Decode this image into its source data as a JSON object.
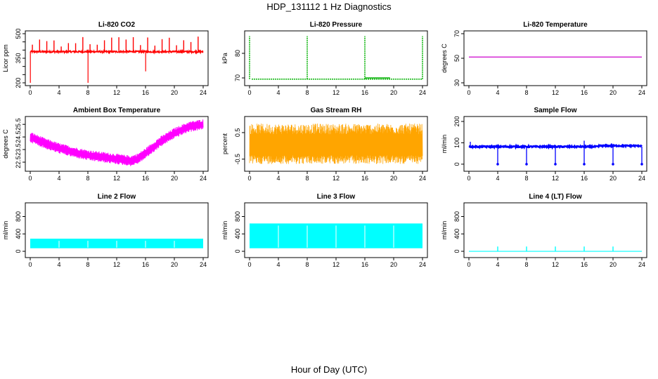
{
  "page": {
    "title": "HDP_131112  1 Hz Diagnostics",
    "xlabel": "Hour of Day (UTC)"
  },
  "chart_data": [
    {
      "type": "line",
      "title": "Li-820 CO2",
      "ylabel": "Licor ppm",
      "color": "#ff0000",
      "xlim": [
        0,
        24
      ],
      "ylim": [
        200,
        500
      ],
      "xticks": [
        "0",
        "4",
        "8",
        "12",
        "16",
        "20",
        "24"
      ],
      "yticks": [
        "200",
        "350",
        "500"
      ],
      "yticks_minor": [
        250,
        300,
        400,
        450
      ],
      "series": [
        {
          "baseline": 390,
          "spikes_up_to": 490,
          "dips_down_to": 200,
          "dip_hours": [
            0,
            8,
            16
          ]
        }
      ]
    },
    {
      "type": "line",
      "title": "Li-820 Pressure",
      "ylabel": "kPa",
      "color": "#00b000",
      "xlim": [
        0,
        24
      ],
      "ylim": [
        68,
        88
      ],
      "xticks": [
        "0",
        "4",
        "8",
        "12",
        "16",
        "20",
        "24"
      ],
      "yticks": [
        "70",
        "80"
      ],
      "series": [
        {
          "baseline": 69.5,
          "spikes_up_to": 87,
          "spike_hours": [
            0,
            8,
            16,
            24
          ]
        }
      ]
    },
    {
      "type": "line",
      "title": "Li-820 Temperature",
      "ylabel": "degrees C",
      "color": "#cc00cc",
      "xlim": [
        0,
        24
      ],
      "ylim": [
        30,
        70
      ],
      "xticks": [
        "0",
        "4",
        "8",
        "12",
        "16",
        "20",
        "24"
      ],
      "yticks": [
        "30",
        "50",
        "70"
      ],
      "series": [
        {
          "baseline": 51
        }
      ]
    },
    {
      "type": "line",
      "title": "Ambient Box Temperature",
      "ylabel": "degrees C",
      "color": "#ff00ff",
      "xlim": [
        0,
        24
      ],
      "ylim": [
        22.0,
        25.9
      ],
      "xticks": [
        "0",
        "4",
        "8",
        "12",
        "16",
        "20",
        "24"
      ],
      "yticks": [
        "22.5",
        "23.5",
        "24.5",
        "25.5"
      ],
      "series": [
        {
          "x": [
            0,
            2,
            4,
            6,
            8,
            10,
            12,
            14,
            15,
            16,
            18,
            20,
            22,
            24
          ],
          "y": [
            24.5,
            24.0,
            23.6,
            23.3,
            23.05,
            22.9,
            22.75,
            22.6,
            22.8,
            23.2,
            24.1,
            24.8,
            25.3,
            25.5
          ]
        }
      ]
    },
    {
      "type": "line",
      "title": "Gas Stream RH",
      "ylabel": "percent",
      "color": "#ffa500",
      "xlim": [
        0,
        24
      ],
      "ylim": [
        -0.85,
        1.0
      ],
      "xticks": [
        "0",
        "4",
        "8",
        "12",
        "16",
        "20",
        "24"
      ],
      "yticks": [
        "-0.5",
        "0.5"
      ],
      "series": [
        {
          "band_low": -0.65,
          "band_high": 0.8
        }
      ]
    },
    {
      "type": "line",
      "title": "Sample Flow",
      "ylabel": "ml/min",
      "color": "#0000ff",
      "xlim": [
        0,
        24
      ],
      "ylim": [
        -20,
        210
      ],
      "xticks": [
        "0",
        "4",
        "8",
        "12",
        "16",
        "20",
        "24"
      ],
      "yticks": [
        "0",
        "100",
        "200"
      ],
      "series": [
        {
          "baseline": 82,
          "dip_hours": [
            4,
            8,
            12,
            16,
            20,
            24
          ]
        }
      ]
    },
    {
      "type": "area",
      "title": "Line 2 Flow",
      "ylabel": "ml/min",
      "color": "#00ffff",
      "xlim": [
        0,
        24
      ],
      "ylim": [
        -80,
        1050
      ],
      "xticks": [
        "0",
        "4",
        "8",
        "12",
        "16",
        "20",
        "24"
      ],
      "yticks": [
        "0",
        "400",
        "800"
      ],
      "series": [
        {
          "band_low": 70,
          "band_high": 290
        }
      ]
    },
    {
      "type": "area",
      "title": "Line 3 Flow",
      "ylabel": "ml/min",
      "color": "#00ffff",
      "xlim": [
        0,
        24
      ],
      "ylim": [
        -80,
        1050
      ],
      "xticks": [
        "0",
        "4",
        "8",
        "12",
        "16",
        "20",
        "24"
      ],
      "yticks": [
        "0",
        "400",
        "800"
      ],
      "series": [
        {
          "band_low": 70,
          "band_high": 640
        }
      ]
    },
    {
      "type": "line",
      "title": "Line 4 (LT) Flow",
      "ylabel": "ml/min",
      "color": "#00ffff",
      "xlim": [
        0,
        24
      ],
      "ylim": [
        -80,
        1050
      ],
      "xticks": [
        "0",
        "4",
        "8",
        "12",
        "16",
        "20",
        "24"
      ],
      "yticks": [
        "0",
        "400",
        "800"
      ],
      "series": [
        {
          "baseline": 0,
          "spike_hours": [
            4,
            8,
            12,
            16,
            20
          ],
          "spikes_up_to": 110
        }
      ]
    }
  ]
}
